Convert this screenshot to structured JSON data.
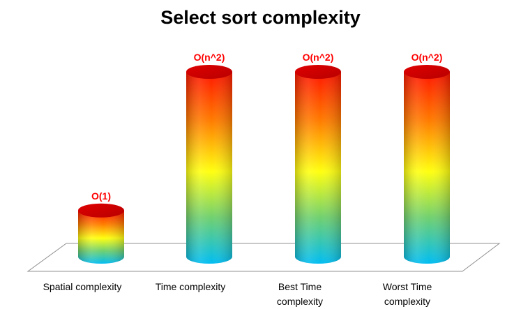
{
  "chart_data": {
    "type": "bar",
    "title": "Select sort complexity",
    "categories": [
      "Spatial  complexity",
      "Time  complexity",
      "Best Time\ncomplexity",
      "Worst Time\ncomplexity"
    ],
    "values": [
      1,
      4,
      4,
      4
    ],
    "data_labels": [
      "O(1)",
      "O(n^2)",
      "O(n^2)",
      "O(n^2)"
    ],
    "xlabel": "",
    "ylabel": "",
    "grid": false,
    "style": "3d-cylinder",
    "colors": {
      "gradient_top": "#ff0000",
      "gradient_upper": "#ff7000",
      "gradient_mid": "#ffff00",
      "gradient_lower": "#60d060",
      "gradient_bottom": "#00b8f0",
      "data_label": "#ff0000",
      "floor_line": "#909090"
    }
  }
}
